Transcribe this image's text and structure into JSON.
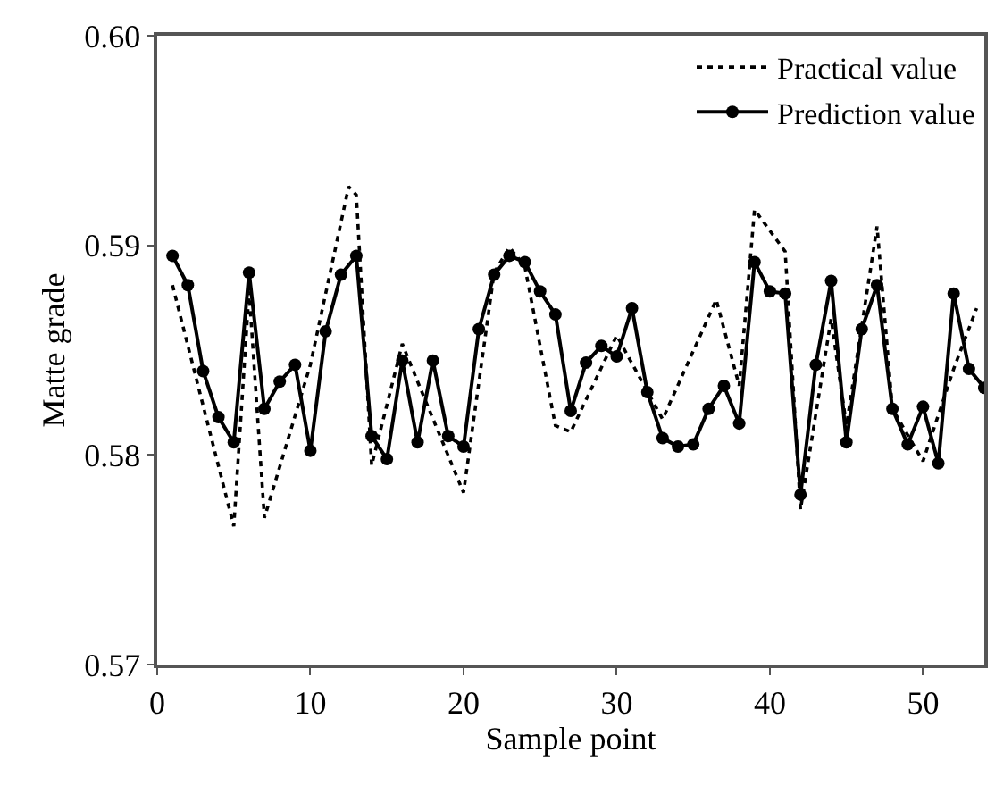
{
  "chart_data": {
    "type": "line",
    "xlabel": "Sample point",
    "ylabel": "Matte grade",
    "xlim": [
      0,
      54
    ],
    "xticks": [
      0,
      10,
      20,
      30,
      40,
      50
    ],
    "ylim": [
      0.57,
      0.6
    ],
    "yticks": [
      {
        "value": 0.57,
        "label": "0.57"
      },
      {
        "value": 0.58,
        "label": "0.58"
      },
      {
        "value": 0.59,
        "label": "0.59"
      },
      {
        "value": 0.6,
        "label": "0.60"
      }
    ],
    "legend": "top right",
    "series": [
      {
        "name": "Practical value",
        "color": "#000000",
        "line_style": "dotted",
        "marker": "none",
        "x": [
          1,
          5,
          6,
          7,
          10,
          12.5,
          13,
          14,
          16,
          17,
          20,
          22,
          23,
          24,
          26,
          27,
          30,
          33,
          36.5,
          38,
          39,
          41,
          42,
          44,
          45,
          47,
          48,
          50,
          52,
          53.5
        ],
        "values": [
          0.5881,
          0.5766,
          0.5878,
          0.577,
          0.5843,
          0.5928,
          0.5924,
          0.5795,
          0.5853,
          0.5835,
          0.5782,
          0.5887,
          0.5899,
          0.589,
          0.5814,
          0.5811,
          0.5857,
          0.5817,
          0.5874,
          0.5833,
          0.5917,
          0.5897,
          0.5774,
          0.5865,
          0.5814,
          0.5909,
          0.5822,
          0.5797,
          0.5841,
          0.587
        ]
      },
      {
        "name": "Prediction value",
        "color": "#000000",
        "line_style": "solid",
        "marker": "circle",
        "x": [
          1,
          2,
          3,
          4,
          5,
          6,
          7,
          8,
          9,
          10,
          11,
          12,
          13,
          14,
          15,
          16,
          17,
          18,
          19,
          20,
          21,
          22,
          23,
          24,
          25,
          26,
          27,
          28,
          29,
          30,
          31,
          32,
          33,
          34,
          35,
          36,
          37,
          38,
          39,
          40,
          41,
          42,
          43,
          44,
          45,
          46,
          47,
          48,
          49,
          50,
          51,
          52,
          53,
          54
        ],
        "values": [
          0.5895,
          0.5881,
          0.584,
          0.5818,
          0.5806,
          0.5887,
          0.5822,
          0.5835,
          0.5843,
          0.5802,
          0.5859,
          0.5886,
          0.5895,
          0.5809,
          0.5798,
          0.5845,
          0.5806,
          0.5845,
          0.5809,
          0.5804,
          0.586,
          0.5886,
          0.5895,
          0.5892,
          0.5878,
          0.5867,
          0.5821,
          0.5844,
          0.5852,
          0.5847,
          0.587,
          0.583,
          0.5808,
          0.5804,
          0.5805,
          0.5822,
          0.5833,
          0.5815,
          0.5892,
          0.5878,
          0.5877,
          0.5781,
          0.5843,
          0.5883,
          0.5806,
          0.586,
          0.5881,
          0.5822,
          0.5805,
          0.5823,
          0.5796,
          0.5877,
          0.5841,
          0.5832
        ]
      }
    ]
  }
}
